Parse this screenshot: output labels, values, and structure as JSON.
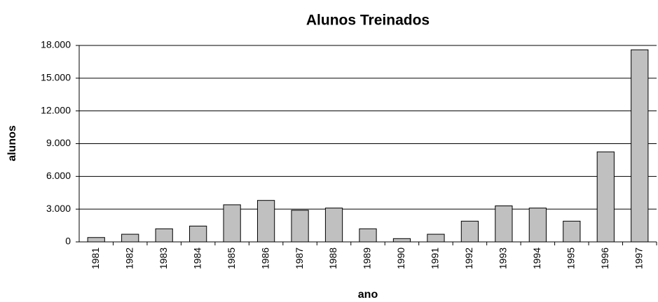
{
  "chart_data": {
    "type": "bar",
    "title": "Alunos Treinados",
    "x_label": "ano",
    "y_label": "alunos",
    "categories": [
      "1981",
      "1982",
      "1983",
      "1984",
      "1985",
      "1986",
      "1987",
      "1988",
      "1989",
      "1990",
      "1991",
      "1992",
      "1993",
      "1994",
      "1995",
      "1996",
      "1997"
    ],
    "values": [
      400,
      700,
      1200,
      1450,
      3400,
      3800,
      2900,
      3100,
      1200,
      300,
      700,
      1900,
      3300,
      3100,
      1900,
      8250,
      17600
    ],
    "color": "#c0c0c0",
    "ylim": [
      0,
      18000
    ],
    "yticks": [
      0,
      {
        "value": 3000,
        "label": "3.000"
      },
      {
        "value": 6000,
        "label": "6.000"
      },
      {
        "value": 9000,
        "label": "9.000"
      },
      {
        "value": 12000,
        "label": "12.000"
      },
      {
        "value": 15000,
        "label": "15.000"
      },
      {
        "value": 18000,
        "label": "18.000"
      }
    ],
    "grid": true
  }
}
